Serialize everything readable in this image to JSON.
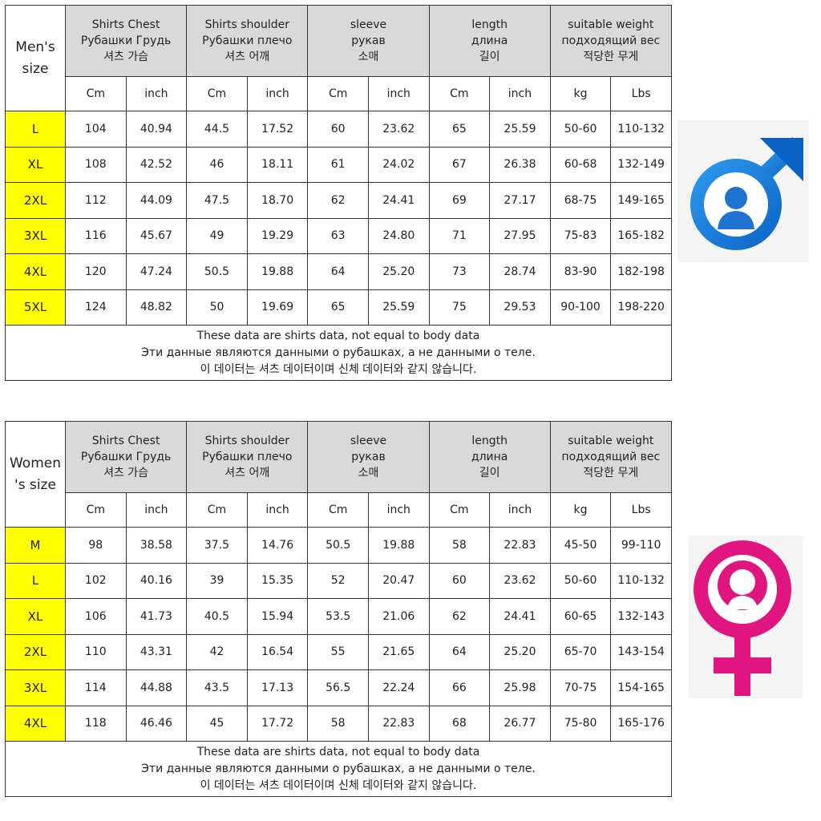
{
  "men": {
    "corner": [
      "Men's",
      "size"
    ],
    "headers": [
      [
        "Shirts Chest",
        "Рубашки Грудь",
        "셔츠 가슴"
      ],
      [
        "Shirts shoulder",
        "Рубашки плечо",
        "셔츠 어깨"
      ],
      [
        "sleeve",
        "рукав",
        "소매"
      ],
      [
        "length",
        "длина",
        "길이"
      ],
      [
        "suitable weight",
        "подходящий вес",
        "적당한 무게"
      ]
    ],
    "units": [
      "Cm",
      "inch",
      "Cm",
      "inch",
      "Cm",
      "inch",
      "Cm",
      "inch",
      "kg",
      "Lbs"
    ],
    "rows": [
      [
        "L",
        "104",
        "40.94",
        "44.5",
        "17.52",
        "60",
        "23.62",
        "65",
        "25.59",
        "50-60",
        "110-132"
      ],
      [
        "XL",
        "108",
        "42.52",
        "46",
        "18.11",
        "61",
        "24.02",
        "67",
        "26.38",
        "60-68",
        "132-149"
      ],
      [
        "2XL",
        "112",
        "44.09",
        "47.5",
        "18.70",
        "62",
        "24.41",
        "69",
        "27.17",
        "68-75",
        "149-165"
      ],
      [
        "3XL",
        "116",
        "45.67",
        "49",
        "19.29",
        "63",
        "24.80",
        "71",
        "27.95",
        "75-83",
        "165-182"
      ],
      [
        "4XL",
        "120",
        "47.24",
        "50.5",
        "19.88",
        "64",
        "25.20",
        "73",
        "28.74",
        "83-90",
        "182-198"
      ],
      [
        "5XL",
        "124",
        "48.82",
        "50",
        "19.69",
        "65",
        "25.59",
        "75",
        "29.53",
        "90-100",
        "198-220"
      ]
    ],
    "note": [
      "These data are shirts data, not equal to body data",
      "Эти данные являются данными о рубашках, а не данными о теле.",
      "이 데이터는 셔츠 데이터이며 신체 데이터와 같지 않습니다."
    ]
  },
  "women": {
    "corner": [
      "Women",
      "'s size"
    ],
    "headers": [
      [
        "Shirts Chest",
        "Рубашки Грудь",
        "셔츠 가슴"
      ],
      [
        "Shirts shoulder",
        "Рубашки плечо",
        "셔츠 어깨"
      ],
      [
        "sleeve",
        "рукав",
        "소매"
      ],
      [
        "length",
        "длина",
        "길이"
      ],
      [
        "suitable weight",
        "подходящий вес",
        "적당한 무게"
      ]
    ],
    "units": [
      "Cm",
      "inch",
      "Cm",
      "inch",
      "Cm",
      "inch",
      "Cm",
      "inch",
      "kg",
      "Lbs"
    ],
    "rows": [
      [
        "M",
        "98",
        "38.58",
        "37.5",
        "14.76",
        "50.5",
        "19.88",
        "58",
        "22.83",
        "45-50",
        "99-110"
      ],
      [
        "L",
        "102",
        "40.16",
        "39",
        "15.35",
        "52",
        "20.47",
        "60",
        "23.62",
        "50-60",
        "110-132"
      ],
      [
        "XL",
        "106",
        "41.73",
        "40.5",
        "15.94",
        "53.5",
        "21.06",
        "62",
        "24.41",
        "60-65",
        "132-143"
      ],
      [
        "2XL",
        "110",
        "43.31",
        "42",
        "16.54",
        "55",
        "21.65",
        "64",
        "25.20",
        "65-70",
        "143-154"
      ],
      [
        "3XL",
        "114",
        "44.88",
        "43.5",
        "17.13",
        "56.5",
        "22.24",
        "66",
        "25.98",
        "70-75",
        "154-165"
      ],
      [
        "4XL",
        "118",
        "46.46",
        "45",
        "17.72",
        "58",
        "22.83",
        "68",
        "26.77",
        "75-80",
        "165-176"
      ]
    ],
    "note": [
      "These data are shirts data, not equal to body data",
      "Эти данные являются данными о рубашках, а не данными о теле.",
      "이 데이터는 셔츠 데이터이며 신체 데이터와 같지 않습니다."
    ]
  }
}
